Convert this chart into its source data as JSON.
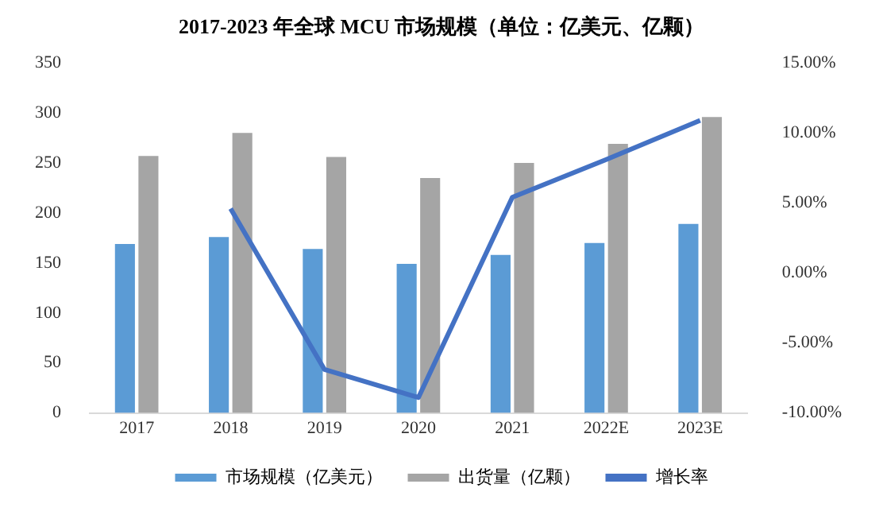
{
  "chart_data": {
    "type": "bar",
    "title": "2017-2023 年全球 MCU 市场规模（单位：亿美元、亿颗）",
    "categories": [
      "2017",
      "2018",
      "2019",
      "2020",
      "2021",
      "2022E",
      "2023E"
    ],
    "series": [
      {
        "name": "市场规模（亿美元）",
        "color": "#5b9bd5",
        "values": [
          169,
          176,
          164,
          149,
          158,
          170,
          189
        ]
      },
      {
        "name": "出货量（亿颗）",
        "color": "#a5a5a5",
        "values": [
          257,
          280,
          256,
          235,
          250,
          269,
          296
        ]
      },
      {
        "name": "增长率",
        "type": "line",
        "axis": "y2",
        "color": "#4472c4",
        "values": [
          null,
          4.6,
          -6.9,
          -8.9,
          5.4,
          8.1,
          10.9
        ]
      }
    ],
    "ylim": [
      0,
      350
    ],
    "yticks": [
      0,
      50,
      100,
      150,
      200,
      250,
      300,
      350
    ],
    "y2lim": [
      -10,
      15
    ],
    "y2ticks": [
      {
        "value": -10,
        "label": "-10.00%"
      },
      {
        "value": -5,
        "label": "-5.00%"
      },
      {
        "value": 0,
        "label": "0.00%"
      },
      {
        "value": 5,
        "label": "5.00%"
      },
      {
        "value": 10,
        "label": "10.00%"
      },
      {
        "value": 15,
        "label": "15.00%"
      }
    ],
    "grid": false,
    "legend": "bottom",
    "marker": "none"
  }
}
